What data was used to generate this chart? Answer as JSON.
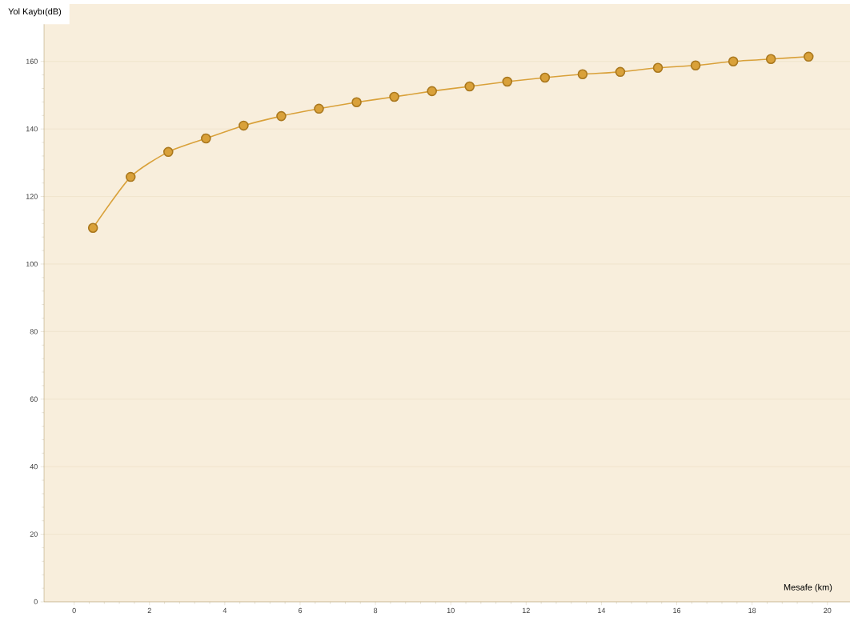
{
  "chart_data": {
    "type": "line",
    "xlabel": "Mesafe (km)",
    "ylabel": "Yol Kaybı(dB)",
    "series": [
      {
        "color": "#d9a13a",
        "x": [
          0.5,
          1.5,
          2.5,
          3.5,
          4.5,
          5.5,
          6.5,
          7.5,
          8.5,
          9.5,
          10.5,
          11.5,
          12.5,
          13.5,
          14.5,
          15.5,
          16.5,
          17.5,
          18.5,
          19.5
        ],
        "values": [
          110.7,
          125.8,
          133.2,
          137.2,
          141.0,
          143.8,
          146.0,
          147.9,
          149.5,
          151.2,
          152.6,
          154.0,
          155.2,
          156.2,
          156.9,
          158.1,
          158.8,
          160.0,
          160.7,
          161.4
        ]
      }
    ],
    "xlim": [
      -0.8,
      20.6
    ],
    "ylim": [
      0,
      177
    ],
    "xticks": [
      0,
      2,
      4,
      6,
      8,
      10,
      12,
      14,
      16,
      18,
      20
    ],
    "yticks": [
      0,
      20,
      40,
      60,
      80,
      100,
      120,
      140,
      160
    ],
    "grid": "y",
    "marker": "circle",
    "line_style": "solid"
  }
}
